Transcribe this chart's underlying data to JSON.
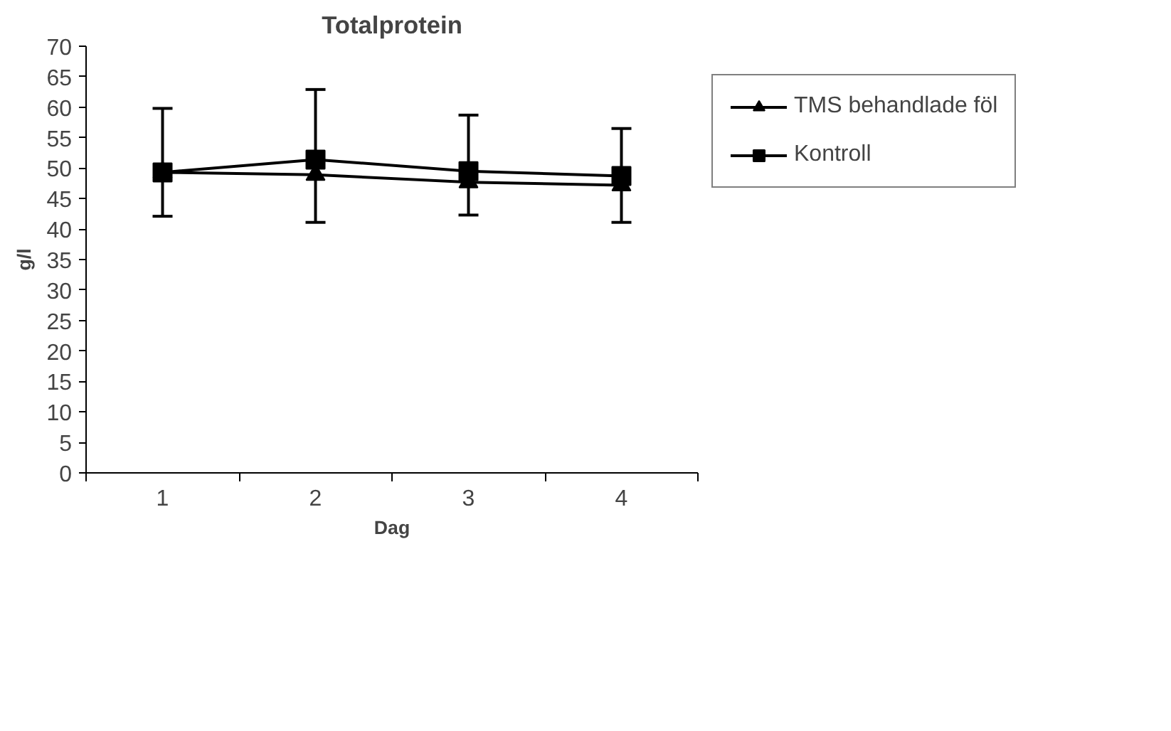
{
  "chart_data": {
    "type": "line",
    "title": "Totalprotein",
    "xlabel": "Dag",
    "ylabel": "g/l",
    "categories": [
      "1",
      "2",
      "3",
      "4"
    ],
    "ylim": [
      0,
      70
    ],
    "yticks": [
      0,
      5,
      10,
      15,
      20,
      25,
      30,
      35,
      40,
      45,
      50,
      55,
      60,
      65,
      70
    ],
    "grid": false,
    "legend": "right",
    "series": [
      {
        "name": "TMS behandlade föl",
        "color": "#000000",
        "marker": "triangle",
        "values": [
          49.3,
          48.9,
          47.7,
          47.2
        ]
      },
      {
        "name": "Kontroll",
        "color": "#000000",
        "marker": "square",
        "values": [
          49.3,
          51.4,
          49.5,
          48.7
        ],
        "errors": [
          [
            42.1,
            59.8
          ],
          [
            41.1,
            62.9
          ],
          [
            42.3,
            58.7
          ],
          [
            41.1,
            56.5
          ]
        ]
      }
    ]
  }
}
